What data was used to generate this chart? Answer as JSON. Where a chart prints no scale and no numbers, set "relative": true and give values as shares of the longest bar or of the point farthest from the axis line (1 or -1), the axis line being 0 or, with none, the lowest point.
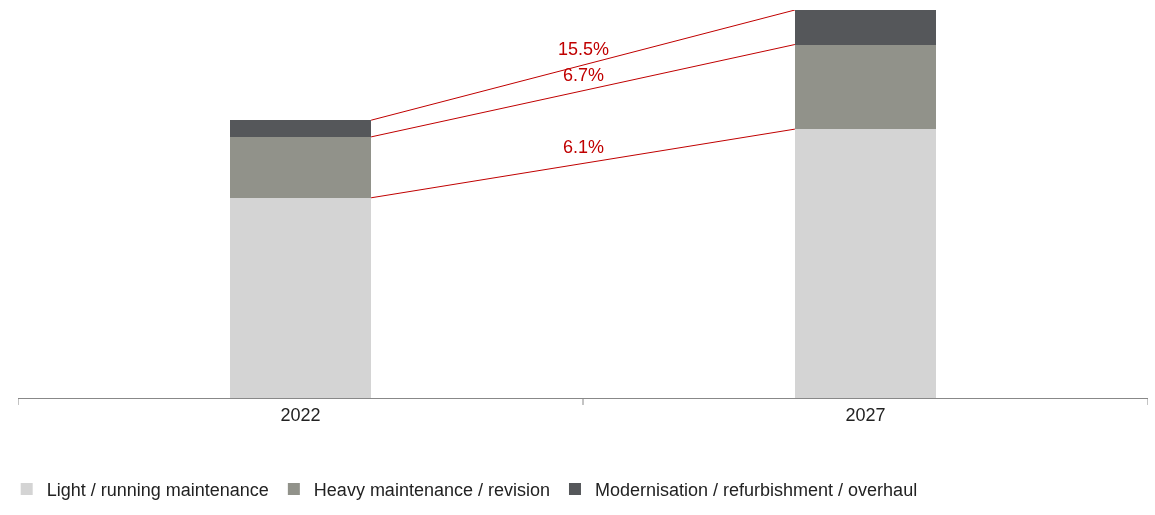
{
  "chart_data": {
    "type": "bar",
    "stacked": true,
    "relative": true,
    "categories": [
      "2022",
      "2027"
    ],
    "series": [
      {
        "name": "Light / running maintenance",
        "color": "#d4d4d4",
        "values": [
          0.516,
          0.693
        ]
      },
      {
        "name": "Heavy maintenance / revision",
        "color": "#91928a",
        "values": [
          0.157,
          0.218
        ]
      },
      {
        "name": "Modernisation / refurbishment / overhaul",
        "color": "#55575a",
        "values": [
          0.043,
          0.089
        ]
      }
    ],
    "annotations": [
      "6.1%",
      "6.7%",
      "15.5%"
    ],
    "legend": "bottom"
  }
}
